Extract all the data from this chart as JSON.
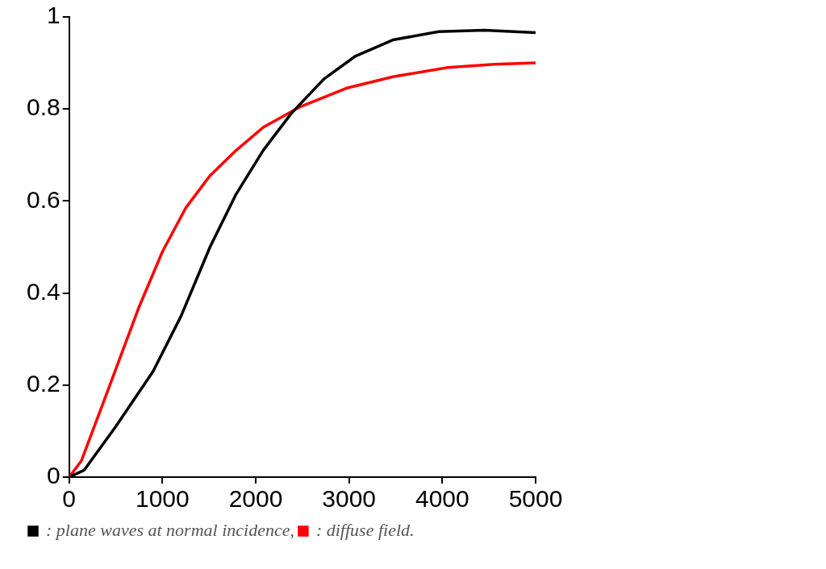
{
  "chart_data": {
    "type": "line",
    "xlim": [
      0,
      5000
    ],
    "xticks": [
      0,
      1000,
      2000,
      3000,
      4000,
      5000
    ],
    "ylim": [
      0,
      1
    ],
    "yticks": [
      0,
      0.2,
      0.4,
      0.6,
      0.8,
      1
    ],
    "grid": false,
    "legend": "bottom",
    "marker": "none",
    "line_style": "solid",
    "series": [
      {
        "name": ": plane waves at normal incidence,",
        "color": "#000000",
        "x": [
          0,
          160,
          500,
          900,
          1200,
          1510,
          1790,
          2080,
          2380,
          2730,
          3070,
          3470,
          3960,
          4450,
          5000
        ],
        "values": [
          0,
          0.015,
          0.11,
          0.23,
          0.35,
          0.5,
          0.615,
          0.71,
          0.79,
          0.865,
          0.915,
          0.95,
          0.968,
          0.971,
          0.966
        ]
      },
      {
        "name": ": diffuse field.",
        "color": "#ff0000",
        "x": [
          0,
          130,
          400,
          750,
          1000,
          1250,
          1510,
          1790,
          2080,
          2480,
          2970,
          3470,
          4060,
          4560,
          5000
        ],
        "values": [
          0,
          0.035,
          0.18,
          0.37,
          0.49,
          0.585,
          0.655,
          0.71,
          0.76,
          0.805,
          0.845,
          0.87,
          0.89,
          0.897,
          0.9
        ]
      }
    ]
  }
}
